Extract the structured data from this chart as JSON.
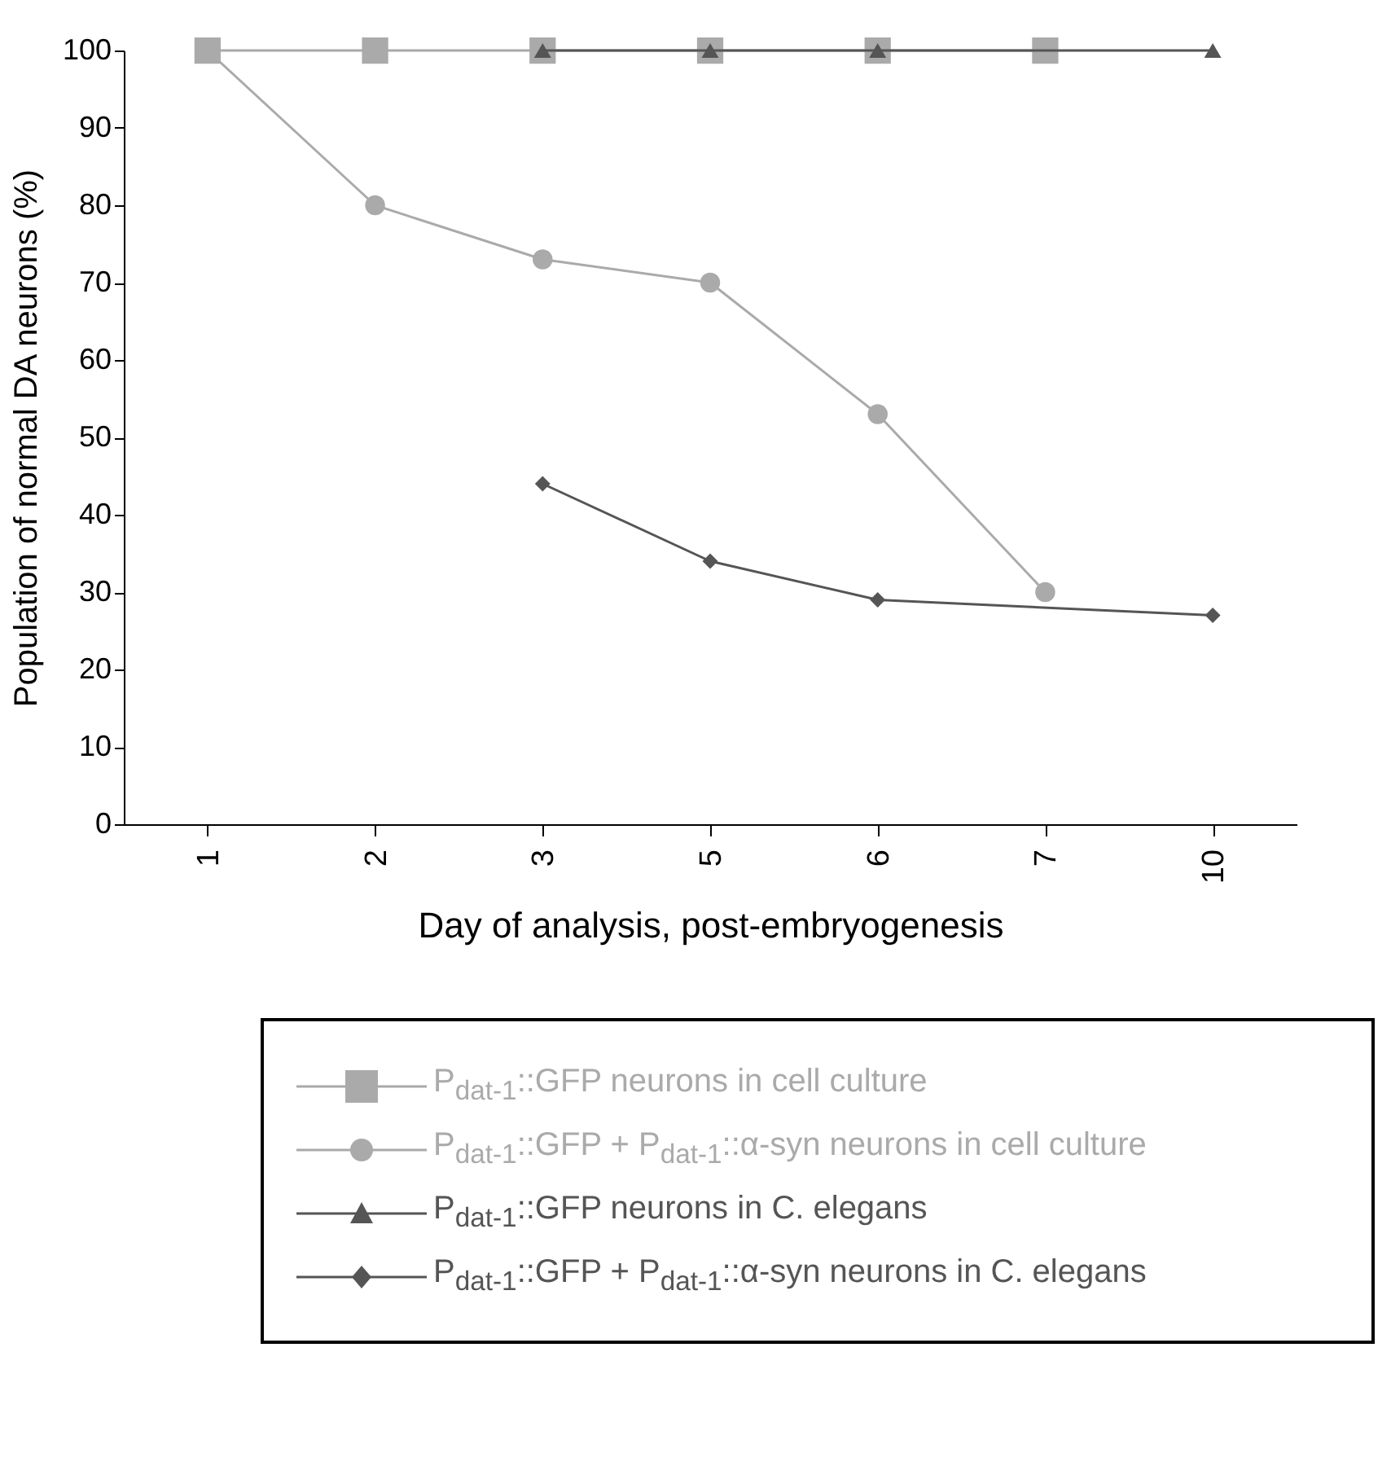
{
  "chart_data": {
    "type": "line",
    "xlabel": "Day of analysis, post-embryogenesis",
    "ylabel": "Population of normal DA neurons (%)",
    "categories": [
      "1",
      "2",
      "3",
      "5",
      "6",
      "7",
      "10"
    ],
    "series": [
      {
        "name": "P$_{dat-1}$::GFP neurons in cell culture",
        "color": "#aaaaaa",
        "marker": "square",
        "values": [
          100,
          100,
          100,
          100,
          100,
          100,
          null
        ]
      },
      {
        "name": "P$_{dat-1}$::GFP + P$_{dat-1}$::α-syn neurons in cell culture",
        "color": "#aaaaaa",
        "marker": "circle",
        "values": [
          100,
          80,
          73,
          70,
          53,
          30,
          null
        ]
      },
      {
        "name": "P$_{dat-1}$::GFP neurons in C. elegans",
        "color": "#555555",
        "marker": "triangle",
        "values": [
          null,
          null,
          100,
          100,
          100,
          null,
          100
        ]
      },
      {
        "name": "P$_{dat-1}$::GFP + P$_{dat-1}$::α-syn neurons in C. elegans",
        "color": "#555555",
        "marker": "diamond",
        "values": [
          null,
          null,
          44,
          34,
          29,
          null,
          27
        ]
      }
    ],
    "ylim": [
      0,
      100
    ],
    "yticks": [
      0,
      10,
      20,
      30,
      40,
      50,
      60,
      70,
      80,
      90,
      100
    ],
    "grid": false,
    "legend": "bottom"
  }
}
